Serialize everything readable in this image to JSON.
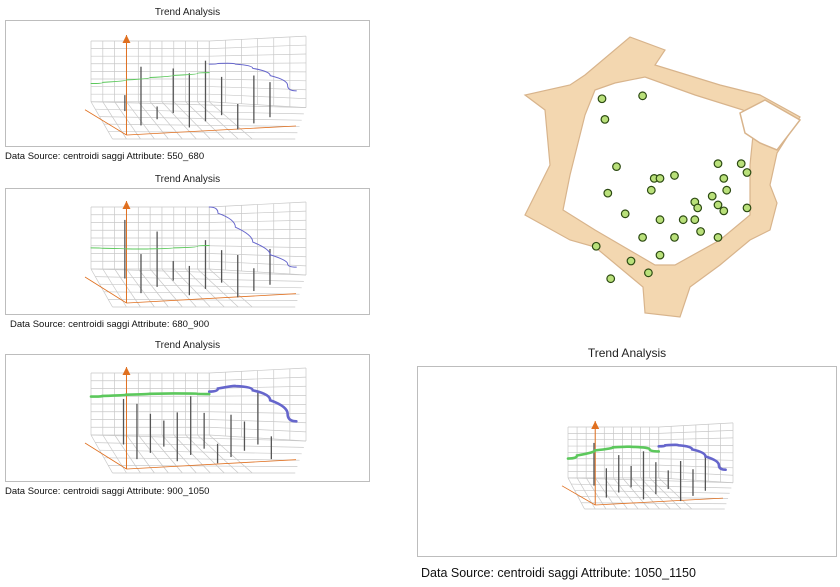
{
  "panels": [
    {
      "title": "Trend Analysis",
      "caption": "Data Source: centroidi saggi Attribute: 550_680"
    },
    {
      "title": "Trend Analysis",
      "caption": "Data Source: centroidi saggi Attribute: 680_900"
    },
    {
      "title": "Trend Analysis",
      "caption": "Data Source: centroidi saggi Attribute: 900_1050"
    },
    {
      "title": "Trend Analysis",
      "caption": "Data Source: centroidi saggi Attribute: 1050_1150"
    }
  ],
  "colors": {
    "green_trend": "#5cc85c",
    "blue_trend": "#6666cc",
    "axis_arrow": "#e07020",
    "grid": "#c8c8c8",
    "stick": "#555555",
    "plan_fill": "#f3d7b0",
    "plan_stroke": "#d8b48c",
    "point_fill": "#b9e07a",
    "point_stroke": "#2c4a12"
  },
  "chart_data": [
    {
      "type": "line",
      "title": "Trend Analysis",
      "attribute": "550_680",
      "series": [
        {
          "values": [
            0.3,
            0.34,
            0.38,
            0.42,
            0.45,
            0.48
          ]
        },
        {
          "values": [
            0.62,
            0.64,
            0.6,
            0.5,
            0.36,
            0.18
          ]
        }
      ],
      "sticks": [
        0.25,
        0.92,
        0.2,
        0.7,
        0.85,
        0.95,
        0.6,
        0.4,
        0.75,
        0.55
      ]
    },
    {
      "type": "line",
      "title": "Trend Analysis",
      "attribute": "680_900",
      "series": [
        {
          "values": [
            0.34,
            0.33,
            0.32,
            0.33,
            0.35,
            0.38
          ]
        },
        {
          "values": [
            1.0,
            0.8,
            0.55,
            0.32,
            0.14,
            0.03
          ]
        }
      ],
      "sticks": [
        0.9,
        0.6,
        0.85,
        0.3,
        0.45,
        0.75,
        0.5,
        0.65,
        0.35,
        0.55
      ]
    },
    {
      "type": "line",
      "title": "Trend Analysis",
      "attribute": "900_1050",
      "series": [
        {
          "values": [
            0.62,
            0.64,
            0.66,
            0.67,
            0.67,
            0.66
          ]
        },
        {
          "values": [
            0.7,
            0.8,
            0.78,
            0.66,
            0.46,
            0.22
          ]
        }
      ],
      "sticks": [
        0.7,
        0.85,
        0.6,
        0.4,
        0.75,
        0.9,
        0.55,
        0.3,
        0.65,
        0.45,
        0.8,
        0.35
      ]
    },
    {
      "type": "line",
      "title": "Trend Analysis",
      "attribute": "1050_1150",
      "series": [
        {
          "values": [
            0.38,
            0.5,
            0.58,
            0.62,
            0.6,
            0.52
          ]
        },
        {
          "values": [
            0.62,
            0.66,
            0.62,
            0.5,
            0.34,
            0.16
          ]
        }
      ],
      "sticks": [
        0.8,
        0.55,
        0.7,
        0.4,
        0.9,
        0.6,
        0.35,
        0.75,
        0.5,
        0.65
      ]
    }
  ],
  "map_points": [
    [
      0.3,
      0.25
    ],
    [
      0.44,
      0.24
    ],
    [
      0.31,
      0.32
    ],
    [
      0.35,
      0.48
    ],
    [
      0.32,
      0.57
    ],
    [
      0.48,
      0.52
    ],
    [
      0.47,
      0.56
    ],
    [
      0.5,
      0.52
    ],
    [
      0.55,
      0.51
    ],
    [
      0.7,
      0.47
    ],
    [
      0.72,
      0.52
    ],
    [
      0.73,
      0.56
    ],
    [
      0.62,
      0.6
    ],
    [
      0.63,
      0.62
    ],
    [
      0.68,
      0.58
    ],
    [
      0.7,
      0.61
    ],
    [
      0.72,
      0.63
    ],
    [
      0.38,
      0.64
    ],
    [
      0.44,
      0.72
    ],
    [
      0.5,
      0.78
    ],
    [
      0.55,
      0.72
    ],
    [
      0.58,
      0.66
    ],
    [
      0.62,
      0.66
    ],
    [
      0.64,
      0.7
    ],
    [
      0.5,
      0.66
    ],
    [
      0.4,
      0.8
    ],
    [
      0.28,
      0.75
    ],
    [
      0.33,
      0.86
    ],
    [
      0.46,
      0.84
    ],
    [
      0.7,
      0.72
    ],
    [
      0.8,
      0.62
    ],
    [
      0.78,
      0.47
    ],
    [
      0.8,
      0.5
    ]
  ]
}
